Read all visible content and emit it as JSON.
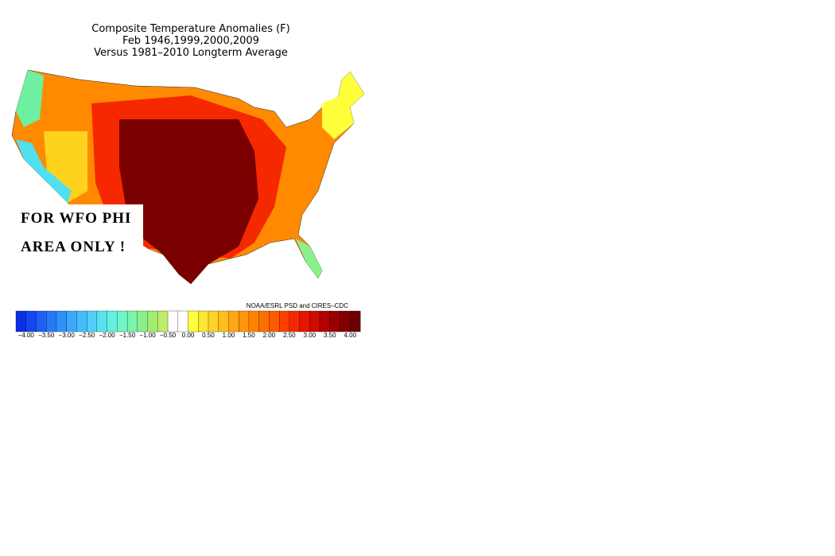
{
  "header": {
    "title": "Composite Temperature Anomalies (F)",
    "subtitle": "Feb  1946,1999,2000,2009",
    "note": "Versus 1981–2010 Longterm Average"
  },
  "overlay": {
    "line1": "FOR WFO PHI",
    "line2": "AREA ONLY !"
  },
  "credit": "NOAA/ESRL PSD and CIRES–CDC",
  "colorbar": {
    "colors": [
      "#0a2fe6",
      "#1446f0",
      "#1e5ff5",
      "#2878f8",
      "#3290fa",
      "#3ca8fb",
      "#46bcfb",
      "#50d0f8",
      "#5ae2f0",
      "#64f0e0",
      "#6ef5c8",
      "#7af5aa",
      "#8af08c",
      "#a2ec70",
      "#c0ec68",
      "#ffffff",
      "#ffffff",
      "#ffff3c",
      "#ffe632",
      "#ffd228",
      "#ffbe1e",
      "#ffa814",
      "#ff960a",
      "#ff8200",
      "#ff6e00",
      "#ff5a00",
      "#ff4000",
      "#f52800",
      "#e61400",
      "#cc0a00",
      "#b40000",
      "#9a0000",
      "#820000",
      "#6a0000"
    ],
    "labels": [
      "−4.00",
      "−3.50",
      "−3.00",
      "−2.50",
      "−2.00",
      "−1.50",
      "−1.00",
      "−0.50",
      "0.00",
      "0.50",
      "1.00",
      "1.50",
      "2.00",
      "2.50",
      "3.00",
      "3.50",
      "4.00"
    ]
  }
}
